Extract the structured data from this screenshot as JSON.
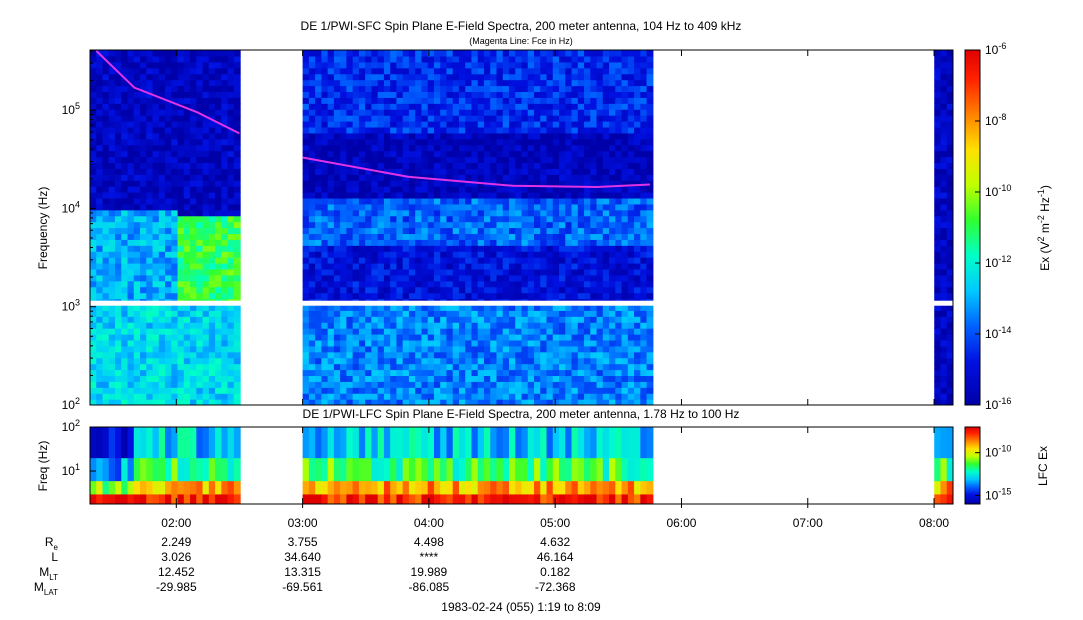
{
  "chart_data": [
    {
      "type": "heatmap",
      "title": "DE 1/PWI-SFC  Spin Plane E-Field Spectra, 200 meter antenna, 104 Hz to 409 kHz",
      "subtitle": "(Magenta Line: Fce in Hz)",
      "ylabel": "Frequency (Hz)",
      "yscale": "log",
      "ylim": [
        100,
        409000
      ],
      "yticks": [
        {
          "value": 100,
          "base": "10",
          "exp": "2"
        },
        {
          "value": 1000,
          "base": "10",
          "exp": "3"
        },
        {
          "value": 10000,
          "base": "10",
          "exp": "4"
        },
        {
          "value": 100000,
          "base": "10",
          "exp": "5"
        }
      ],
      "xlim": [
        79,
        489
      ],
      "data_gaps": [
        [
          150,
          180
        ],
        [
          345,
          479
        ]
      ],
      "colorbar": {
        "scale": "log",
        "range": [
          -16,
          -6
        ],
        "label_prefix": "Ex (V",
        "label_sq1": "2",
        "label_mid": " m",
        "label_sq2": "-2",
        "label_mid2": " Hz",
        "label_sup": "-1",
        "label_suffix": ")",
        "ticks": [
          {
            "value": -6,
            "base": "10",
            "exp": "-6"
          },
          {
            "value": -8,
            "base": "10",
            "exp": "-8"
          },
          {
            "value": -10,
            "base": "10",
            "exp": "-10"
          },
          {
            "value": -12,
            "base": "10",
            "exp": "-12"
          },
          {
            "value": -14,
            "base": "10",
            "exp": "-14"
          },
          {
            "value": -16,
            "base": "10",
            "exp": "-16"
          }
        ]
      },
      "series": [
        {
          "name": "Fce",
          "color": "#e033e6",
          "points": [
            [
              82,
              400000
            ],
            [
              100,
              170000
            ],
            [
              130,
              95000
            ],
            [
              150,
              58000
            ],
            [
              180,
              33000
            ],
            [
              230,
              21000
            ],
            [
              280,
              17000
            ],
            [
              320,
              16500
            ],
            [
              345,
              17500
            ]
          ]
        }
      ],
      "intensity_regions": [
        {
          "t0": 79,
          "t1": 150,
          "f0": 100,
          "f1": 1000,
          "level": -12.5
        },
        {
          "t0": 120,
          "t1": 150,
          "f0": 1000,
          "f1": 8000,
          "level": -11
        },
        {
          "t0": 79,
          "t1": 120,
          "f0": 1000,
          "f1": 10000,
          "level": -13
        },
        {
          "t0": 79,
          "t1": 150,
          "f0": 10000,
          "f1": 409000,
          "level": -15.5
        },
        {
          "t0": 180,
          "t1": 345,
          "f0": 100,
          "f1": 1000,
          "level": -13.5
        },
        {
          "t0": 180,
          "t1": 345,
          "f0": 1000,
          "f1": 12000,
          "level": -15
        },
        {
          "t0": 180,
          "t1": 345,
          "f0": 4000,
          "f1": 12000,
          "level": -13.8
        },
        {
          "t0": 180,
          "t1": 345,
          "f0": 60000,
          "f1": 409000,
          "level": -14.5
        },
        {
          "t0": 180,
          "t1": 345,
          "f0": 12000,
          "f1": 60000,
          "level": -15.6
        }
      ]
    },
    {
      "type": "heatmap",
      "title": "DE 1/PWI-LFC  Spin Plane E-Field Spectra, 200 meter antenna, 1.78 Hz to 100 Hz",
      "ylabel": "Freq (Hz)",
      "yscale": "log",
      "ylim": [
        1.78,
        100
      ],
      "yticks": [
        {
          "value": 10,
          "base": "10",
          "exp": "1"
        },
        {
          "value": 100,
          "base": "10",
          "exp": "2"
        }
      ],
      "xlim": [
        79,
        489
      ],
      "data_gaps": [
        [
          150,
          180
        ],
        [
          345,
          479
        ]
      ],
      "colorbar": {
        "scale": "log",
        "range": [
          -16,
          -7
        ],
        "label": "LFC Ex",
        "ticks": [
          {
            "value": -10,
            "base": "10",
            "exp": "-10"
          },
          {
            "value": -15,
            "base": "10",
            "exp": "-15"
          }
        ]
      },
      "bands": [
        {
          "f0": 1.78,
          "f1": 3,
          "level": -7.5
        },
        {
          "f0": 3,
          "f1": 6,
          "level": -9
        },
        {
          "f0": 6,
          "f1": 20,
          "level": -11.5
        },
        {
          "f0": 20,
          "f1": 100,
          "level": -13
        }
      ]
    }
  ],
  "time_axis": {
    "ticks": [
      {
        "t": 120,
        "label": "02:00"
      },
      {
        "t": 180,
        "label": "03:00"
      },
      {
        "t": 240,
        "label": "04:00"
      },
      {
        "t": 300,
        "label": "05:00"
      },
      {
        "t": 360,
        "label": "06:00"
      },
      {
        "t": 420,
        "label": "07:00"
      },
      {
        "t": 480,
        "label": "08:00"
      }
    ]
  },
  "ephemeris": {
    "rows": [
      {
        "label_main": "R",
        "label_sub": "e",
        "values": [
          "2.249",
          "3.755",
          "4.498",
          "4.632"
        ]
      },
      {
        "label_main": "L",
        "label_sub": "",
        "values": [
          "3.026",
          "34.640",
          "****",
          "46.164"
        ]
      },
      {
        "label_main": "M",
        "label_sub": "LT",
        "values": [
          "12.452",
          "13.315",
          "19.989",
          "0.182"
        ]
      },
      {
        "label_main": "M",
        "label_sub": "LAT",
        "values": [
          "-29.985",
          "-69.561",
          "-86.085",
          "-72.368"
        ]
      }
    ],
    "value_times": [
      120,
      180,
      240,
      300
    ]
  },
  "footer": "1983-02-24 (055) 1:19 to 8:09"
}
